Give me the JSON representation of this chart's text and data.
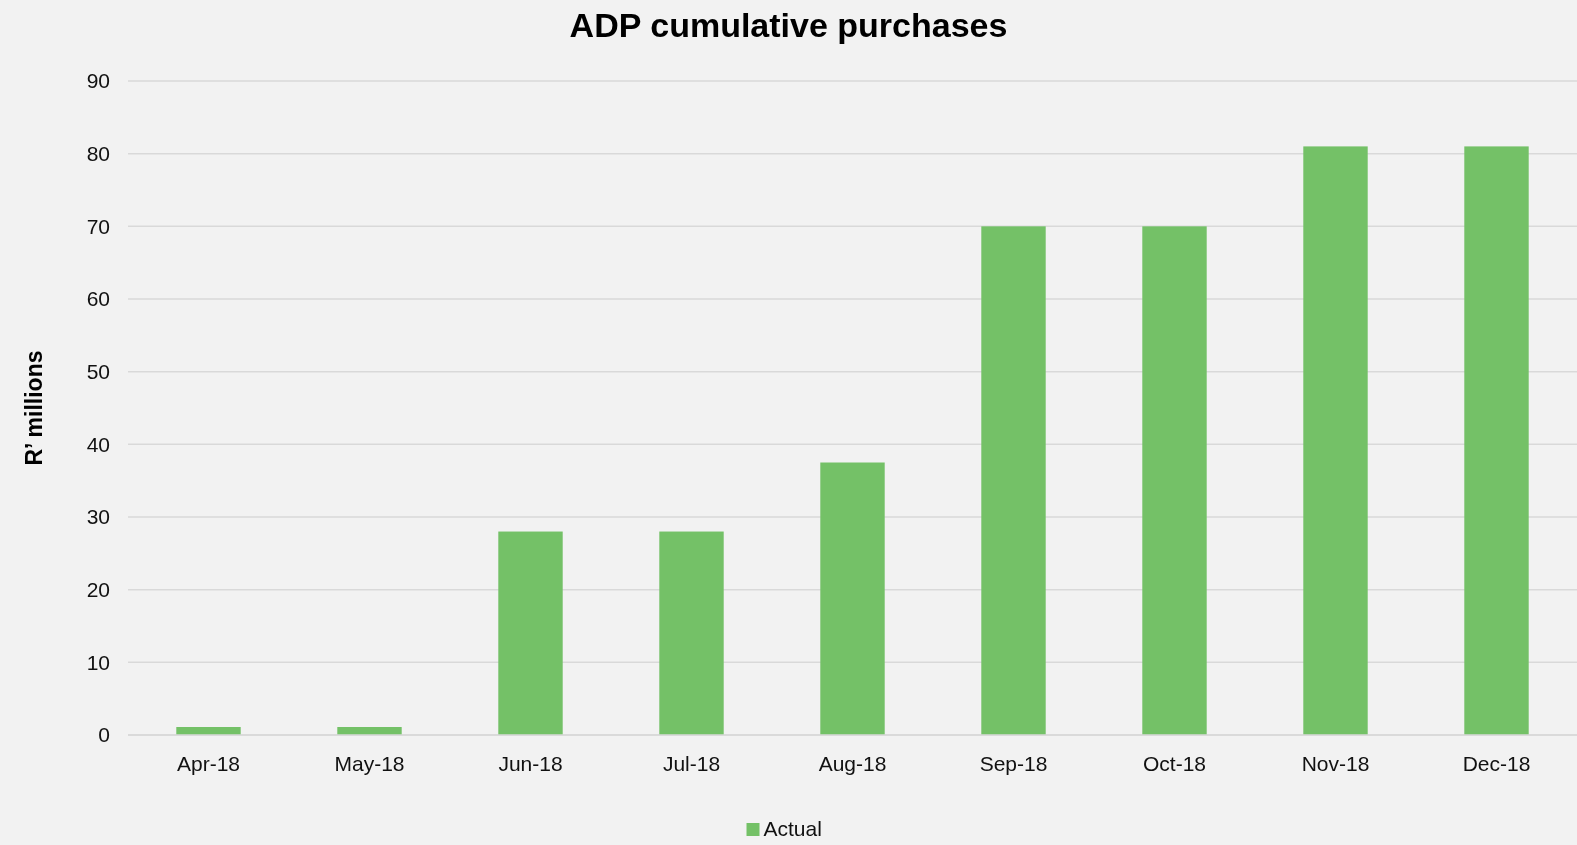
{
  "chart_data": {
    "type": "bar",
    "title": "ADP cumulative purchases",
    "ylabel": "R’ millions",
    "categories": [
      "Apr-18",
      "May-18",
      "Jun-18",
      "Jul-18",
      "Aug-18",
      "Sep-18",
      "Oct-18",
      "Nov-18",
      "Dec-18"
    ],
    "series": [
      {
        "name": "Actual",
        "color": "#74c167",
        "values": [
          1.1,
          1.1,
          28,
          28,
          37.5,
          70,
          70,
          81,
          81
        ]
      }
    ],
    "ylim": [
      0,
      90
    ],
    "yticks": [
      0,
      10,
      20,
      30,
      40,
      50,
      60,
      70,
      80,
      90
    ],
    "grid": "y",
    "legend": "bottom"
  }
}
